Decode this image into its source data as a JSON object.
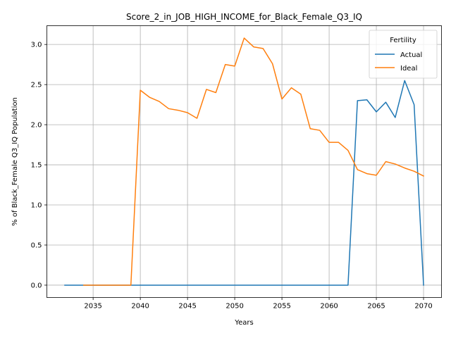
{
  "chart_data": {
    "type": "line",
    "title": "Score_2_in_JOB_HIGH_INCOME_for_Black_Female_Q3_IQ",
    "xlabel": "Years",
    "ylabel": "% of Black_Female Q3_IQ Population",
    "xlim": [
      2030.1,
      2071.9
    ],
    "ylim": [
      -0.154,
      3.234
    ],
    "xticks": [
      2035,
      2040,
      2045,
      2050,
      2055,
      2060,
      2065,
      2070
    ],
    "yticks": [
      0.0,
      0.5,
      1.0,
      1.5,
      2.0,
      2.5,
      3.0
    ],
    "xtick_labels": [
      "2035",
      "2040",
      "2045",
      "2050",
      "2055",
      "2060",
      "2065",
      "2070"
    ],
    "ytick_labels": [
      "0.0",
      "0.5",
      "1.0",
      "1.5",
      "2.0",
      "2.5",
      "3.0"
    ],
    "grid": true,
    "legend": {
      "title": "Fertility",
      "position": "upper right"
    },
    "series": [
      {
        "name": "Actual",
        "color": "#1f77b4",
        "x": [
          2032,
          2033,
          2034,
          2035,
          2036,
          2037,
          2038,
          2039,
          2040,
          2041,
          2042,
          2043,
          2044,
          2045,
          2046,
          2047,
          2048,
          2049,
          2050,
          2051,
          2052,
          2053,
          2054,
          2055,
          2056,
          2057,
          2058,
          2059,
          2060,
          2061,
          2062,
          2063,
          2064,
          2065,
          2066,
          2067,
          2068,
          2069,
          2070
        ],
        "y": [
          0,
          0,
          0,
          0,
          0,
          0,
          0,
          0,
          0,
          0,
          0,
          0,
          0,
          0,
          0,
          0,
          0,
          0,
          0,
          0,
          0,
          0,
          0,
          0,
          0,
          0,
          0,
          0,
          0,
          0,
          0,
          2.3,
          2.31,
          2.16,
          2.28,
          2.09,
          2.55,
          2.25,
          0.0
        ]
      },
      {
        "name": "Ideal",
        "color": "#ff7f0e",
        "x": [
          2034,
          2035,
          2036,
          2037,
          2038,
          2039,
          2040,
          2041,
          2042,
          2043,
          2044,
          2045,
          2046,
          2047,
          2048,
          2049,
          2050,
          2051,
          2052,
          2053,
          2054,
          2055,
          2056,
          2057,
          2058,
          2059,
          2060,
          2061,
          2062,
          2063,
          2064,
          2065,
          2066,
          2067,
          2068,
          2069,
          2070
        ],
        "y": [
          0,
          0,
          0,
          0,
          0,
          0,
          2.43,
          2.34,
          2.29,
          2.2,
          2.18,
          2.15,
          2.08,
          2.44,
          2.4,
          2.75,
          2.73,
          3.08,
          2.97,
          2.95,
          2.76,
          2.32,
          2.46,
          2.38,
          1.95,
          1.93,
          1.78,
          1.78,
          1.68,
          1.44,
          1.39,
          1.37,
          1.54,
          1.51,
          1.46,
          1.42,
          1.36
        ]
      }
    ]
  }
}
